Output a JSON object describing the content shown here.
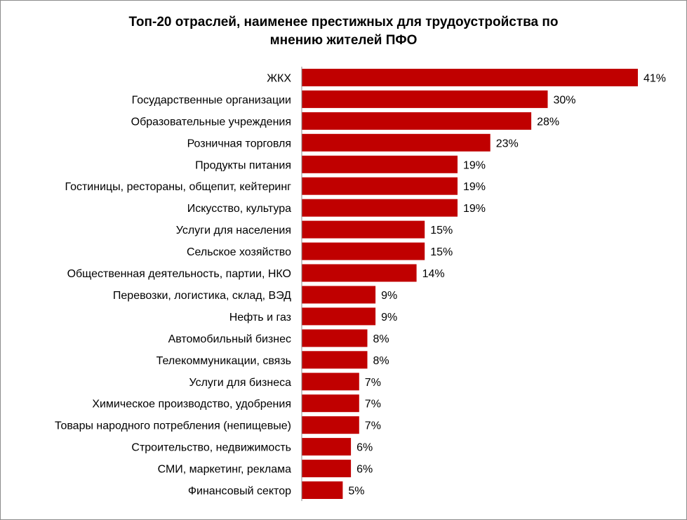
{
  "chart_data": {
    "type": "bar",
    "orientation": "horizontal",
    "title_lines": [
      "Топ-20 отраслей, наименее престижных для трудоустройства  по",
      "мнению жителей ПФО"
    ],
    "categories": [
      "ЖКХ",
      "Государственные организации",
      "Образовательные учреждения",
      "Розничная торговля",
      "Продукты питания",
      "Гостиницы, рестораны, общепит,  кейтеринг",
      "Искусство, культура",
      "Услуги для населения",
      "Сельское хозяйство",
      "Общественная деятельность, партии,  НКО",
      "Перевозки, логистика,  склад, ВЭД",
      "Нефть и газ",
      "Автомобильный бизнес",
      "Телекоммуникации,  связь",
      "Услуги для бизнеса",
      "Химическое производство, удобрения",
      "Товары народного потребления  (непищевые)",
      "Строительство, недвижимость",
      "СМИ, маркетинг,  реклама",
      "Финансовый сектор"
    ],
    "values": [
      41,
      30,
      28,
      23,
      19,
      19,
      19,
      15,
      15,
      14,
      9,
      9,
      8,
      8,
      7,
      7,
      7,
      6,
      6,
      5
    ],
    "value_labels": [
      "41%",
      "30%",
      "28%",
      "23%",
      "19%",
      "19%",
      "19%",
      "15%",
      "15%",
      "14%",
      "9%",
      "9%",
      "8%",
      "8%",
      "7%",
      "7%",
      "7%",
      "6%",
      "6%",
      "5%"
    ],
    "unit": "%",
    "xlim": [
      0,
      41
    ],
    "grid": false,
    "legend": "none",
    "bar_color": "#c00000"
  }
}
